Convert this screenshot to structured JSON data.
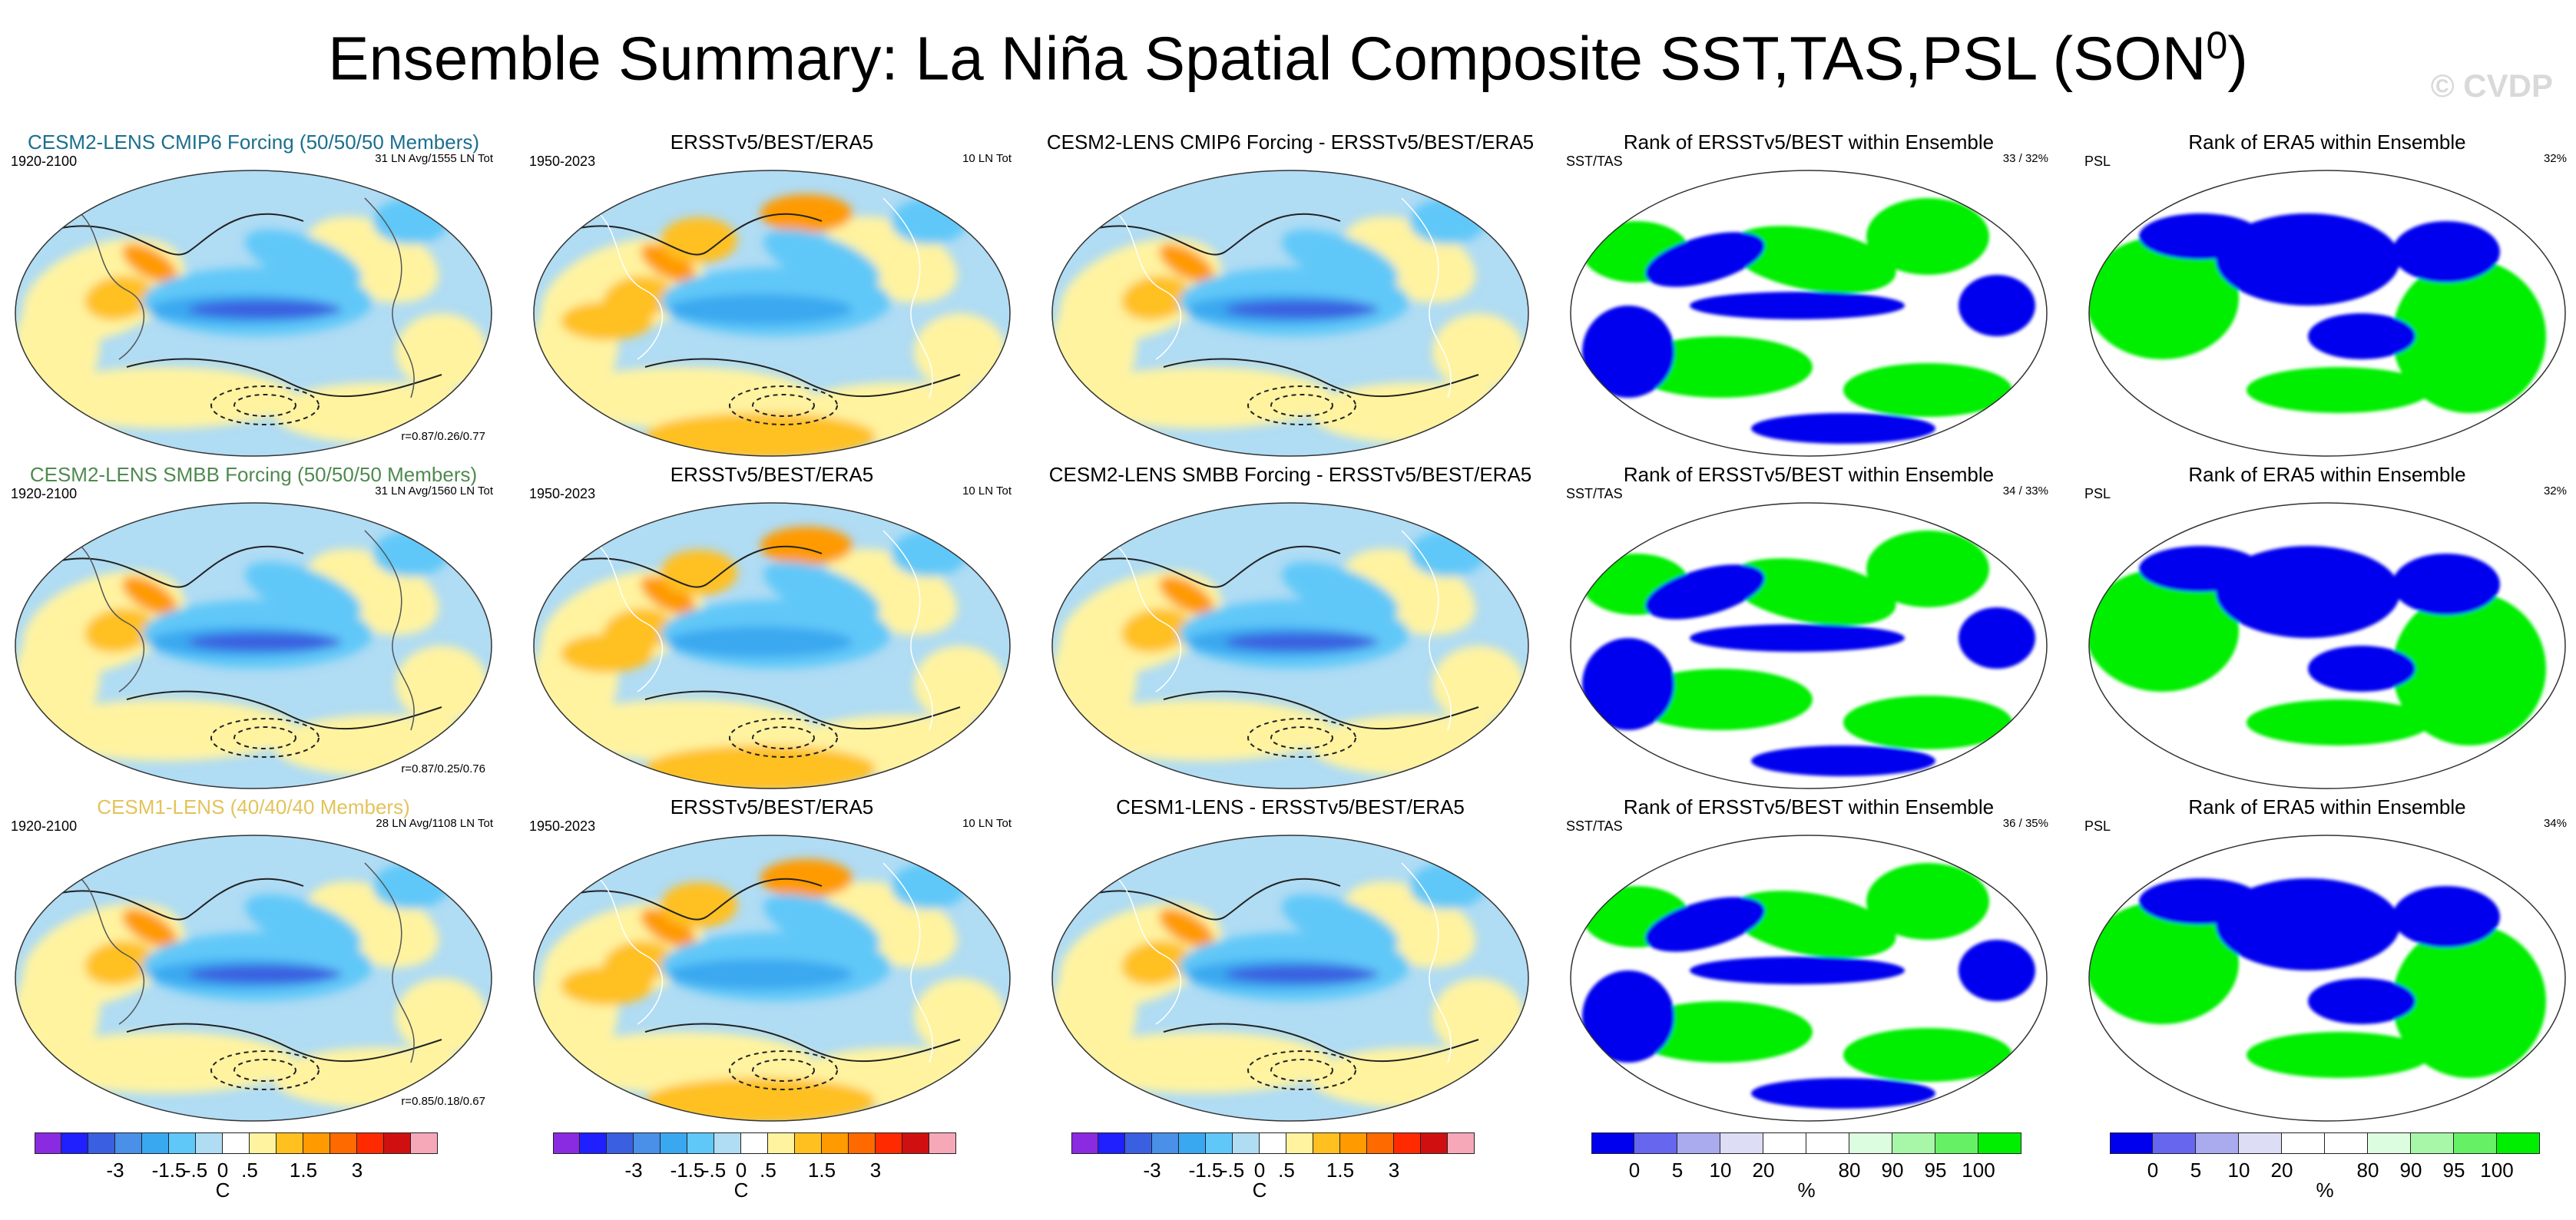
{
  "title": "Ensemble Summary: La Niña Spatial Composite SST,TAS,PSL (SON",
  "title_sup": "0",
  "title_close": ")",
  "watermark": "© CVDP",
  "rows": [
    {
      "ens": {
        "title": "CESM2-LENS CMIP6 Forcing (50/50/50 Members)",
        "color": "#1a6f8f",
        "left": "1920-2100",
        "right": "31 LN Avg/1555 LN Tot",
        "bottom": "r=0.87/0.26/0.77"
      },
      "obs": {
        "title": "ERSSTv5/BEST/ERA5",
        "left": "1950-2023",
        "right": "10 LN Tot"
      },
      "diff": {
        "title": "CESM2-LENS CMIP6 Forcing - ERSSTv5/BEST/ERA5"
      },
      "rank1": {
        "title": "Rank of ERSSTv5/BEST within Ensemble",
        "left": "SST/TAS",
        "right": "33 /  32%"
      },
      "rank2": {
        "title": "Rank of ERA5 within Ensemble",
        "left": "PSL",
        "right": "32%"
      }
    },
    {
      "ens": {
        "title": "CESM2-LENS SMBB Forcing (50/50/50 Members)",
        "color": "#4f8a4f",
        "left": "1920-2100",
        "right": "31 LN Avg/1560 LN Tot",
        "bottom": "r=0.87/0.25/0.76"
      },
      "obs": {
        "title": "ERSSTv5/BEST/ERA5",
        "left": "1950-2023",
        "right": "10 LN Tot"
      },
      "diff": {
        "title": "CESM2-LENS SMBB Forcing - ERSSTv5/BEST/ERA5"
      },
      "rank1": {
        "title": "Rank of ERSSTv5/BEST within Ensemble",
        "left": "SST/TAS",
        "right": "34 /  33%"
      },
      "rank2": {
        "title": "Rank of ERA5 within Ensemble",
        "left": "PSL",
        "right": "32%"
      }
    },
    {
      "ens": {
        "title": "CESM1-LENS (40/40/40 Members)",
        "color": "#e3c35a",
        "left": "1920-2100",
        "right": "28 LN Avg/1108 LN Tot",
        "bottom": "r=0.85/0.18/0.67"
      },
      "obs": {
        "title": "ERSSTv5/BEST/ERA5",
        "left": "1950-2023",
        "right": "10 LN Tot"
      },
      "diff": {
        "title": "CESM1-LENS - ERSSTv5/BEST/ERA5"
      },
      "rank1": {
        "title": "Rank of ERSSTv5/BEST within Ensemble",
        "left": "SST/TAS",
        "right": "36 /  35%"
      },
      "rank2": {
        "title": "Rank of ERA5 within Ensemble",
        "left": "PSL",
        "right": "34%"
      }
    }
  ],
  "colorbars": {
    "temp": {
      "colors": [
        "#8a2be2",
        "#2020ff",
        "#3a5fe0",
        "#4a8fe8",
        "#3aa8f0",
        "#60c8f8",
        "#b0dcf4",
        "#ffffff",
        "#fff3a0",
        "#ffc020",
        "#ff9a00",
        "#ff6a00",
        "#ff2a00",
        "#d01010",
        "#f7a8b8"
      ],
      "ticks": [
        "-3",
        "-1.5",
        "-.5",
        "0",
        ".5",
        "1.5",
        "3"
      ],
      "unit": "C"
    },
    "rank": {
      "colors": [
        "#0000ee",
        "#6666ee",
        "#aaaaee",
        "#ddddf6",
        "#ffffff",
        "#ffffff",
        "#ddfde0",
        "#a8f7a8",
        "#66f066",
        "#00ee00"
      ],
      "ticks": [
        "0",
        "5",
        "10",
        "20",
        "80",
        "90",
        "95",
        "100"
      ],
      "unit": "%"
    }
  },
  "colors": {
    "blue_pct": "#0000ee",
    "green_pct": "#00ee00"
  }
}
